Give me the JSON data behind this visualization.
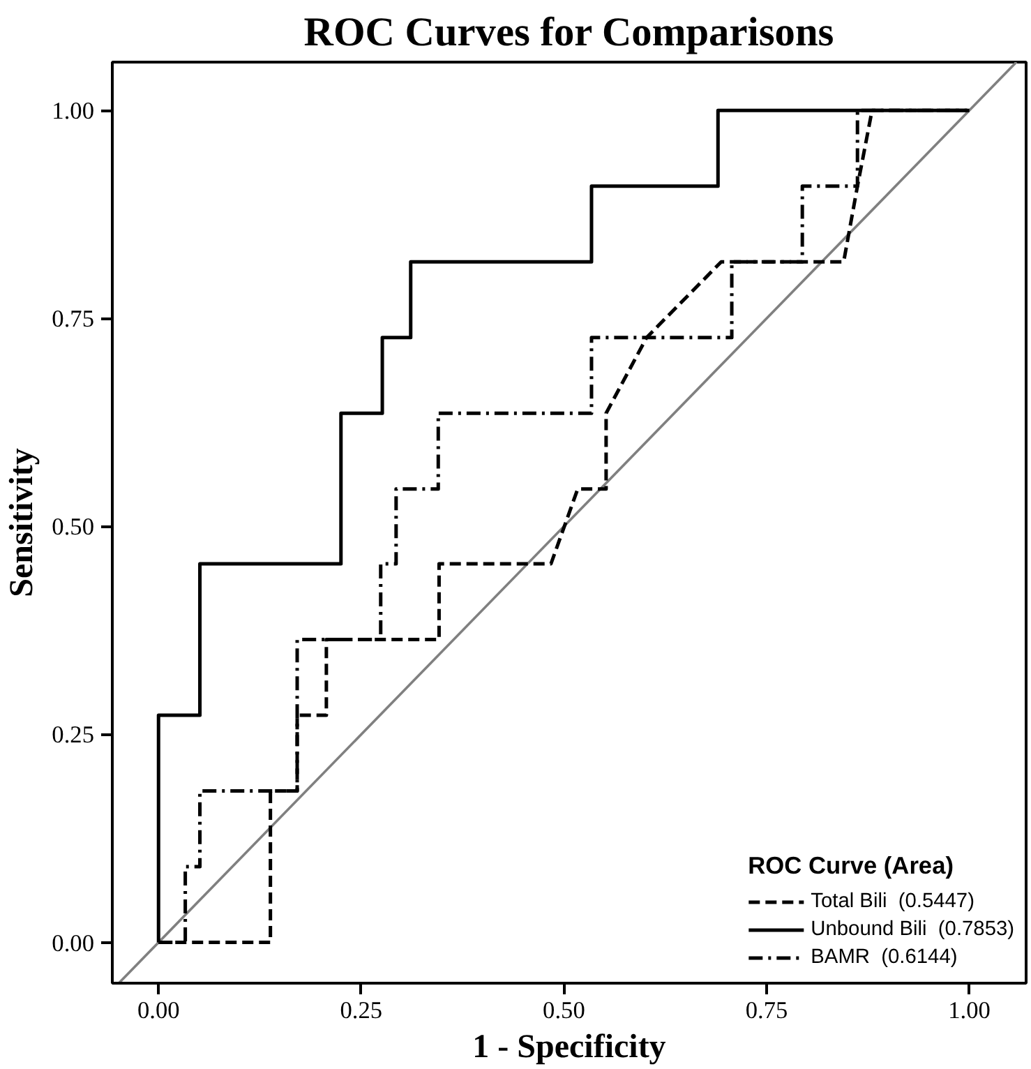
{
  "chart_data": {
    "type": "line",
    "title": "ROC Curves for Comparisons",
    "xlabel": "1 - Specificity",
    "ylabel": "Sensitivity",
    "legend_title": "ROC Curve (Area)",
    "legend": "bottom right",
    "grid": false,
    "marker": "none",
    "xlim": [
      -0.057,
      1.07
    ],
    "ylim": [
      -0.049,
      1.058
    ],
    "xticks": [
      {
        "value": 0,
        "label": "0.00"
      },
      {
        "value": 0.25,
        "label": "0.25"
      },
      {
        "value": 0.5,
        "label": "0.50"
      },
      {
        "value": 0.75,
        "label": "0.75"
      },
      {
        "value": 1,
        "label": "1.00"
      }
    ],
    "yticks": [
      {
        "value": 0,
        "label": "0.00"
      },
      {
        "value": 0.25,
        "label": "0.25"
      },
      {
        "value": 0.5,
        "label": "0.50"
      },
      {
        "value": 0.75,
        "label": "0.75"
      },
      {
        "value": 1,
        "label": "1.00"
      }
    ],
    "series": [
      {
        "color": "#808080",
        "line_style": "solid",
        "x": [
          -0.049,
          1.058
        ],
        "values": [
          -0.049,
          1.058
        ]
      },
      {
        "name": "Total Bili  (0.5447)",
        "color": "#000000",
        "line_style": "dashed",
        "x": [
          0,
          0.138,
          0.138,
          0.171,
          0.171,
          0.207,
          0.207,
          0.346,
          0.346,
          0.484,
          0.517,
          0.552,
          0.552,
          0.602,
          0.694,
          0.845,
          0.862,
          0.88,
          1
        ],
        "values": [
          0,
          0,
          0.182,
          0.182,
          0.273,
          0.273,
          0.364,
          0.364,
          0.455,
          0.455,
          0.545,
          0.545,
          0.636,
          0.727,
          0.818,
          0.818,
          0.909,
          1,
          1
        ]
      },
      {
        "name": "Unbound Bili  (0.7853)",
        "color": "#000000",
        "line_style": "solid",
        "x": [
          0,
          0,
          0.051,
          0.051,
          0.225,
          0.225,
          0.276,
          0.276,
          0.311,
          0.311,
          0.534,
          0.534,
          0.69,
          0.69,
          1
        ],
        "values": [
          0,
          0.273,
          0.273,
          0.455,
          0.455,
          0.636,
          0.636,
          0.727,
          0.727,
          0.818,
          0.818,
          0.909,
          0.909,
          1,
          1
        ]
      },
      {
        "name": "BAMR  (0.6144)",
        "color": "#000000",
        "line_style": "dashdot",
        "x": [
          0,
          0.033,
          0.033,
          0.051,
          0.051,
          0.171,
          0.171,
          0.274,
          0.274,
          0.293,
          0.293,
          0.345,
          0.345,
          0.534,
          0.534,
          0.707,
          0.707,
          0.794,
          0.794,
          0.862,
          0.862,
          1
        ],
        "values": [
          0,
          0,
          0.091,
          0.091,
          0.182,
          0.182,
          0.364,
          0.364,
          0.455,
          0.455,
          0.545,
          0.545,
          0.636,
          0.636,
          0.727,
          0.727,
          0.818,
          0.818,
          0.909,
          0.909,
          1,
          1
        ]
      }
    ]
  }
}
